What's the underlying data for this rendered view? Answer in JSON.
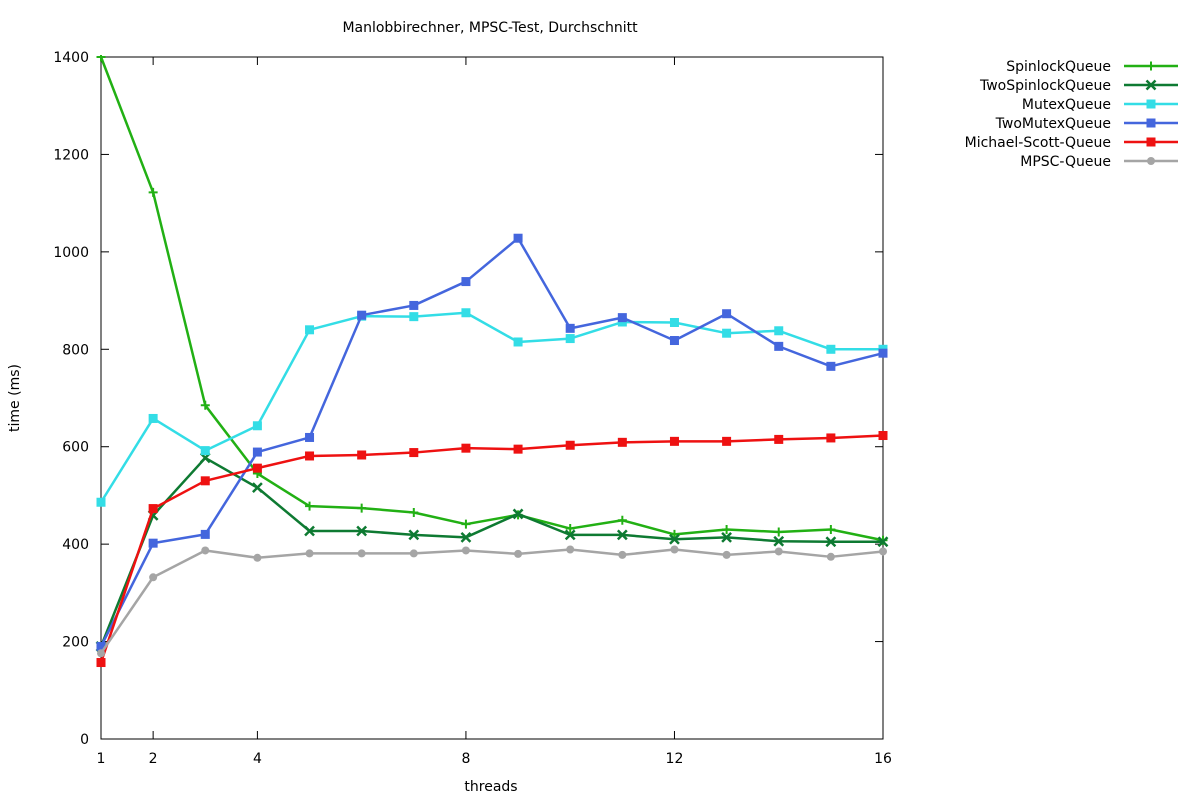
{
  "chart_data": {
    "type": "line",
    "title": "Manlobbirechner, MPSC-Test, Durchschnitt",
    "xlabel": "threads",
    "ylabel": "time (ms)",
    "xlim": [
      1,
      16
    ],
    "ylim": [
      0,
      1400
    ],
    "x_ticks": [
      1,
      2,
      4,
      8,
      12,
      16
    ],
    "y_ticks": [
      0,
      200,
      400,
      600,
      800,
      1000,
      1200,
      1400
    ],
    "grid": false,
    "legend_position": "top-right, outside",
    "x": [
      1,
      2,
      3,
      4,
      5,
      6,
      7,
      8,
      9,
      10,
      11,
      12,
      13,
      14,
      15,
      16
    ],
    "series": [
      {
        "name": "SpinlockQueue",
        "color": "#22b014",
        "marker": "plus",
        "values": [
          1400,
          1122,
          685,
          545,
          478,
          474,
          465,
          441,
          460,
          432,
          449,
          420,
          430,
          425,
          430,
          408
        ]
      },
      {
        "name": "TwoSpinlockQueue",
        "color": "#0e7a32",
        "marker": "x",
        "values": [
          190,
          459,
          577,
          516,
          427,
          427,
          419,
          414,
          462,
          419,
          419,
          410,
          414,
          406,
          405,
          405
        ]
      },
      {
        "name": "MutexQueue",
        "color": "#33dde6",
        "marker": "square",
        "values": [
          486,
          658,
          592,
          643,
          840,
          868,
          867,
          875,
          815,
          822,
          856,
          855,
          833,
          838,
          800,
          800
        ]
      },
      {
        "name": "TwoMutexQueue",
        "color": "#4466dd",
        "marker": "square",
        "values": [
          190,
          402,
          420,
          589,
          619,
          870,
          890,
          939,
          1028,
          843,
          865,
          818,
          873,
          806,
          765,
          792
        ]
      },
      {
        "name": "Michael-Scott-Queue",
        "color": "#ee1111",
        "marker": "square",
        "values": [
          157,
          473,
          530,
          556,
          581,
          583,
          588,
          597,
          595,
          603,
          609,
          611,
          611,
          615,
          618,
          623
        ]
      },
      {
        "name": "MPSC-Queue",
        "color": "#a5a5a5",
        "marker": "circle",
        "values": [
          176,
          332,
          387,
          372,
          381,
          381,
          381,
          387,
          380,
          389,
          378,
          389,
          378,
          385,
          374,
          385
        ]
      }
    ]
  }
}
